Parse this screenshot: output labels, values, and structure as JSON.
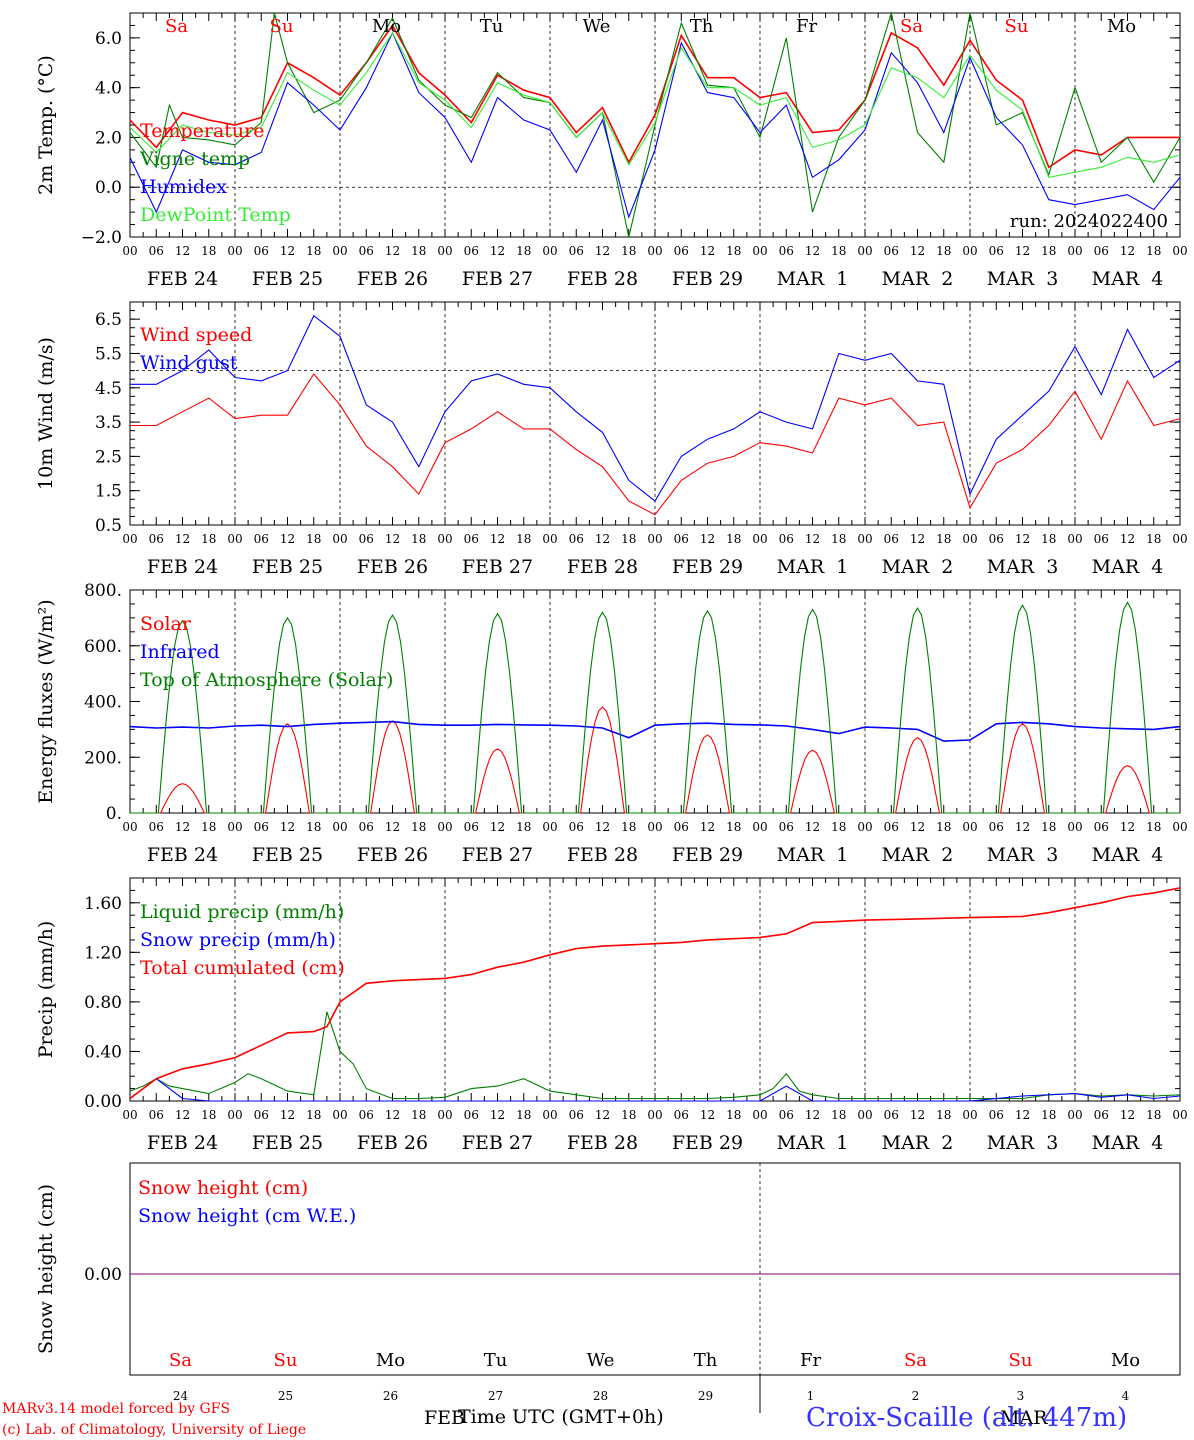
{
  "run_label": "run: 2024022400",
  "hour_ticks": [
    "00",
    "06",
    "12",
    "18"
  ],
  "date_labels": [
    "FEB 24",
    "FEB 25",
    "FEB 26",
    "FEB 27",
    "FEB 28",
    "FEB 29",
    "MAR  1",
    "MAR  2",
    "MAR  3",
    "MAR  4"
  ],
  "weekday_labels": [
    {
      "text": "Sa",
      "weekend": true
    },
    {
      "text": "Su",
      "weekend": true
    },
    {
      "text": "Mo",
      "weekend": false
    },
    {
      "text": "Tu",
      "weekend": false
    },
    {
      "text": "We",
      "weekend": false
    },
    {
      "text": "Th",
      "weekend": false
    },
    {
      "text": "Fr",
      "weekend": false
    },
    {
      "text": "Sa",
      "weekend": true
    },
    {
      "text": "Su",
      "weekend": true
    },
    {
      "text": "Mo",
      "weekend": false
    }
  ],
  "bottom_day_numbers": [
    "24",
    "25",
    "26",
    "27",
    "28",
    "29",
    "1",
    "2",
    "3",
    "4"
  ],
  "month_labels": [
    "FEB",
    "MAR"
  ],
  "x_axis_title": "Time UTC (GMT+0h)",
  "footer": {
    "credit_line1": "MARv3.14 model forced by GFS",
    "credit_line2": "(c) Lab. of Climatology, University of Liege",
    "station": "Croix-Scaille (alt. 447m)"
  },
  "colors": {
    "red": "#ff0000",
    "green": "#008000",
    "blue": "#0000ff",
    "lightgreen": "#33ee33",
    "purple": "#800080"
  },
  "chart_data": [
    {
      "type": "line",
      "ylabel": "2m Temp. (°C)",
      "ylim": [
        -2,
        7
      ],
      "yticks": [
        -2,
        0,
        2,
        4,
        6
      ],
      "ytick_labels": [
        "−2.0",
        "0.0",
        "2.0",
        "4.0",
        "6.0"
      ],
      "ref_line": 0,
      "x_unit": "hours since FEB 24 00 UTC",
      "series": [
        {
          "name": "Temperature",
          "color": "red",
          "x": [
            0,
            6,
            12,
            18,
            24,
            30,
            36,
            42,
            48,
            54,
            60,
            66,
            72,
            78,
            84,
            90,
            96,
            102,
            108,
            114,
            120,
            126,
            132,
            138,
            144,
            150,
            156,
            162,
            168,
            174,
            180,
            186,
            192,
            198,
            204,
            210,
            216,
            222,
            228,
            234,
            240
          ],
          "values": [
            2.7,
            1.6,
            3.0,
            2.7,
            2.5,
            2.8,
            5.0,
            4.4,
            3.7,
            5.0,
            6.5,
            4.6,
            3.7,
            2.6,
            4.5,
            3.9,
            3.6,
            2.2,
            3.2,
            1.0,
            2.9,
            6.1,
            4.4,
            4.4,
            3.6,
            3.8,
            2.2,
            2.3,
            3.5,
            6.2,
            5.6,
            4.1,
            5.9,
            4.3,
            3.5,
            0.8,
            1.5,
            1.3,
            2.0,
            2.0,
            2.0
          ]
        },
        {
          "name": "Vigne temp",
          "color": "green",
          "x": [
            0,
            6,
            9,
            12,
            18,
            24,
            30,
            33,
            36,
            42,
            48,
            54,
            60,
            66,
            72,
            78,
            84,
            90,
            96,
            102,
            108,
            114,
            120,
            126,
            132,
            138,
            144,
            150,
            156,
            162,
            168,
            174,
            180,
            186,
            192,
            198,
            204,
            210,
            216,
            222,
            228,
            234,
            240
          ],
          "values": [
            2.2,
            0.8,
            3.3,
            2.0,
            1.9,
            1.7,
            2.6,
            7.0,
            5.0,
            3.0,
            3.5,
            5.0,
            6.8,
            4.3,
            3.3,
            2.8,
            4.6,
            3.6,
            3.4,
            2.0,
            3.0,
            -2.0,
            2.5,
            6.6,
            4.1,
            4.0,
            2.0,
            6.0,
            -1.0,
            2.0,
            3.5,
            9.0,
            2.2,
            1.0,
            9.0,
            2.5,
            3.0,
            0.5,
            4.0,
            1.0,
            2.0,
            0.2,
            2.0
          ]
        },
        {
          "name": "Humidex",
          "color": "blue",
          "x": [
            0,
            6,
            12,
            18,
            24,
            30,
            36,
            42,
            48,
            54,
            60,
            66,
            72,
            78,
            84,
            90,
            96,
            102,
            108,
            114,
            120,
            126,
            132,
            138,
            144,
            150,
            156,
            162,
            168,
            174,
            180,
            186,
            192,
            198,
            204,
            210,
            216,
            222,
            228,
            234,
            240
          ],
          "values": [
            1.2,
            -1.0,
            1.5,
            1.0,
            0.9,
            1.4,
            4.2,
            3.3,
            2.3,
            4.0,
            6.2,
            3.8,
            2.8,
            1.0,
            3.6,
            2.7,
            2.3,
            0.6,
            2.7,
            -1.2,
            1.5,
            5.8,
            3.8,
            3.6,
            2.2,
            3.3,
            0.4,
            1.1,
            2.3,
            5.4,
            4.2,
            2.2,
            5.2,
            2.8,
            1.7,
            -0.5,
            -0.7,
            -0.5,
            -0.3,
            -0.9,
            0.4
          ]
        },
        {
          "name": "DewPoint Temp",
          "color": "lightgreen",
          "x": [
            0,
            6,
            12,
            18,
            24,
            30,
            36,
            42,
            48,
            54,
            60,
            66,
            72,
            78,
            84,
            90,
            96,
            102,
            108,
            114,
            120,
            126,
            132,
            138,
            144,
            150,
            156,
            162,
            168,
            174,
            180,
            186,
            192,
            198,
            204,
            210,
            216,
            222,
            228,
            234,
            240
          ],
          "values": [
            2.4,
            1.4,
            2.5,
            2.2,
            2.1,
            2.4,
            4.6,
            3.9,
            3.3,
            4.6,
            6.2,
            4.2,
            3.5,
            2.4,
            4.2,
            3.7,
            3.4,
            2.0,
            3.0,
            0.9,
            2.6,
            5.6,
            4.0,
            4.0,
            3.3,
            3.6,
            1.6,
            1.9,
            2.5,
            4.8,
            4.4,
            3.6,
            5.3,
            3.9,
            3.1,
            0.4,
            0.6,
            0.8,
            1.2,
            1.0,
            1.3
          ]
        }
      ],
      "annotation": "run: 2024022400"
    },
    {
      "type": "line",
      "ylabel": "10m Wind (m/s)",
      "ylim": [
        0.5,
        7.0
      ],
      "yticks": [
        0.5,
        1.5,
        2.5,
        3.5,
        4.5,
        5.5,
        6.5
      ],
      "ytick_labels": [
        "0.5",
        "1.5",
        "2.5",
        "3.5",
        "4.5",
        "5.5",
        "6.5"
      ],
      "ref_line": 5,
      "x_unit": "hours since FEB 24 00 UTC",
      "series": [
        {
          "name": "Wind speed",
          "color": "red",
          "x": [
            0,
            6,
            12,
            18,
            24,
            30,
            36,
            42,
            48,
            54,
            60,
            66,
            72,
            78,
            84,
            90,
            96,
            102,
            108,
            114,
            120,
            126,
            132,
            138,
            144,
            150,
            156,
            162,
            168,
            174,
            180,
            186,
            192,
            198,
            204,
            210,
            216,
            222,
            228,
            234,
            240
          ],
          "values": [
            3.4,
            3.4,
            3.8,
            4.2,
            3.6,
            3.7,
            3.7,
            4.9,
            4.0,
            2.8,
            2.2,
            1.4,
            2.9,
            3.3,
            3.8,
            3.3,
            3.3,
            2.7,
            2.2,
            1.2,
            0.8,
            1.8,
            2.3,
            2.5,
            2.9,
            2.8,
            2.6,
            4.2,
            4.0,
            4.2,
            3.4,
            3.5,
            1.0,
            2.3,
            2.7,
            3.4,
            4.4,
            3.0,
            4.7,
            3.4,
            3.6
          ]
        },
        {
          "name": "Wind gust",
          "color": "blue",
          "x": [
            0,
            6,
            12,
            18,
            24,
            30,
            36,
            42,
            48,
            54,
            60,
            66,
            72,
            78,
            84,
            90,
            96,
            102,
            108,
            114,
            120,
            126,
            132,
            138,
            144,
            150,
            156,
            162,
            168,
            174,
            180,
            186,
            192,
            198,
            204,
            210,
            216,
            222,
            228,
            234,
            240
          ],
          "values": [
            4.6,
            4.6,
            5.0,
            5.6,
            4.8,
            4.7,
            5.0,
            6.6,
            6.0,
            4.0,
            3.5,
            2.2,
            3.8,
            4.7,
            4.9,
            4.6,
            4.5,
            3.8,
            3.2,
            1.8,
            1.2,
            2.5,
            3.0,
            3.3,
            3.8,
            3.5,
            3.3,
            5.5,
            5.3,
            5.5,
            4.7,
            4.6,
            1.4,
            3.0,
            3.7,
            4.4,
            5.7,
            4.3,
            6.2,
            4.8,
            5.3
          ]
        }
      ]
    },
    {
      "type": "line",
      "ylabel": "Energy fluxes (W/m²)",
      "ylim": [
        0,
        800
      ],
      "yticks": [
        0,
        200,
        400,
        600,
        800
      ],
      "ytick_labels": [
        "0.",
        "200.",
        "400.",
        "600.",
        "800."
      ],
      "x_unit": "hours since FEB 24 00 UTC",
      "series": [
        {
          "name": "Solar",
          "color": "red",
          "daily_peaks": [
            105,
            320,
            330,
            230,
            380,
            280,
            225,
            270,
            320,
            170
          ],
          "peak_hour": 12,
          "start_hour": 7,
          "end_hour": 17
        },
        {
          "name": "Infrared",
          "color": "blue",
          "x": [
            0,
            6,
            12,
            18,
            24,
            30,
            36,
            42,
            48,
            54,
            60,
            66,
            72,
            78,
            84,
            90,
            96,
            102,
            108,
            114,
            120,
            126,
            132,
            138,
            144,
            150,
            156,
            162,
            168,
            174,
            180,
            186,
            192,
            198,
            204,
            210,
            216,
            222,
            228,
            234,
            240
          ],
          "values": [
            310,
            305,
            308,
            305,
            312,
            315,
            310,
            318,
            322,
            325,
            328,
            318,
            315,
            315,
            318,
            316,
            315,
            312,
            305,
            270,
            315,
            320,
            322,
            318,
            316,
            312,
            300,
            285,
            308,
            305,
            300,
            258,
            262,
            320,
            325,
            320,
            310,
            305,
            302,
            300,
            310
          ]
        },
        {
          "name": "Top of Atmosphere (Solar)",
          "color": "green",
          "daily_peaks": [
            690,
            700,
            710,
            715,
            720,
            725,
            730,
            735,
            745,
            755
          ],
          "peak_hour": 12,
          "start_hour": 6.5,
          "end_hour": 17.5
        }
      ]
    },
    {
      "type": "line",
      "ylabel": "Precip (mm/h)",
      "ylim": [
        0,
        1.8
      ],
      "yticks": [
        0,
        0.4,
        0.8,
        1.2,
        1.6
      ],
      "ytick_labels": [
        "0.00",
        "0.40",
        "0.80",
        "1.20",
        "1.60"
      ],
      "x_unit": "hours since FEB 24 00 UTC",
      "series": [
        {
          "name": "Liquid precip (mm/h)",
          "color": "green",
          "x": [
            0,
            3,
            6,
            9,
            12,
            18,
            24,
            27,
            30,
            36,
            42,
            45,
            48,
            51,
            54,
            60,
            66,
            72,
            78,
            84,
            90,
            96,
            102,
            108,
            114,
            120,
            126,
            132,
            138,
            144,
            147,
            150,
            153,
            156,
            162,
            168,
            180,
            192,
            204,
            210,
            216,
            222,
            228,
            234,
            240
          ],
          "values": [
            0.08,
            0.12,
            0.18,
            0.12,
            0.1,
            0.06,
            0.15,
            0.22,
            0.18,
            0.08,
            0.05,
            0.72,
            0.4,
            0.3,
            0.1,
            0.02,
            0.02,
            0.03,
            0.1,
            0.12,
            0.18,
            0.08,
            0.05,
            0.02,
            0.02,
            0.02,
            0.02,
            0.02,
            0.03,
            0.05,
            0.1,
            0.22,
            0.08,
            0.05,
            0.02,
            0.02,
            0.02,
            0.02,
            0.02,
            0.05,
            0.06,
            0.04,
            0.05,
            0.04,
            0.05
          ]
        },
        {
          "name": "Snow precip (mm/h)",
          "color": "blue",
          "x": [
            0,
            6,
            12,
            18,
            24,
            48,
            96,
            144,
            150,
            156,
            168,
            192,
            204,
            216,
            222,
            228,
            234,
            240
          ],
          "values": [
            0.02,
            0.18,
            0.02,
            0.0,
            0.0,
            0.0,
            0.0,
            0.0,
            0.12,
            0.0,
            0.0,
            0.0,
            0.04,
            0.06,
            0.03,
            0.05,
            0.02,
            0.04
          ]
        },
        {
          "name": "Total cumulated (cm)",
          "color": "red",
          "x": [
            0,
            6,
            12,
            18,
            24,
            30,
            36,
            42,
            45,
            48,
            54,
            60,
            66,
            72,
            78,
            84,
            90,
            96,
            102,
            108,
            114,
            120,
            126,
            132,
            138,
            144,
            150,
            156,
            162,
            168,
            180,
            192,
            204,
            210,
            216,
            222,
            228,
            234,
            240
          ],
          "values": [
            0.02,
            0.18,
            0.26,
            0.3,
            0.35,
            0.45,
            0.55,
            0.56,
            0.6,
            0.8,
            0.95,
            0.97,
            0.98,
            0.99,
            1.02,
            1.08,
            1.12,
            1.18,
            1.23,
            1.25,
            1.26,
            1.27,
            1.28,
            1.3,
            1.31,
            1.32,
            1.35,
            1.44,
            1.45,
            1.46,
            1.47,
            1.48,
            1.49,
            1.52,
            1.56,
            1.6,
            1.65,
            1.68,
            1.72
          ]
        }
      ]
    },
    {
      "type": "line",
      "ylabel": "Snow height (cm)",
      "yticks": [
        0
      ],
      "ytick_labels": [
        "0.00"
      ],
      "x_unit": "hours since FEB 24 00 UTC",
      "series": [
        {
          "name": "Snow height (cm)",
          "color": "red",
          "x": [
            0,
            240
          ],
          "values": [
            0,
            0
          ]
        },
        {
          "name": "Snow height (cm W.E.)",
          "color": "blue",
          "x": [
            0,
            240
          ],
          "values": [
            0,
            0
          ]
        }
      ]
    }
  ]
}
